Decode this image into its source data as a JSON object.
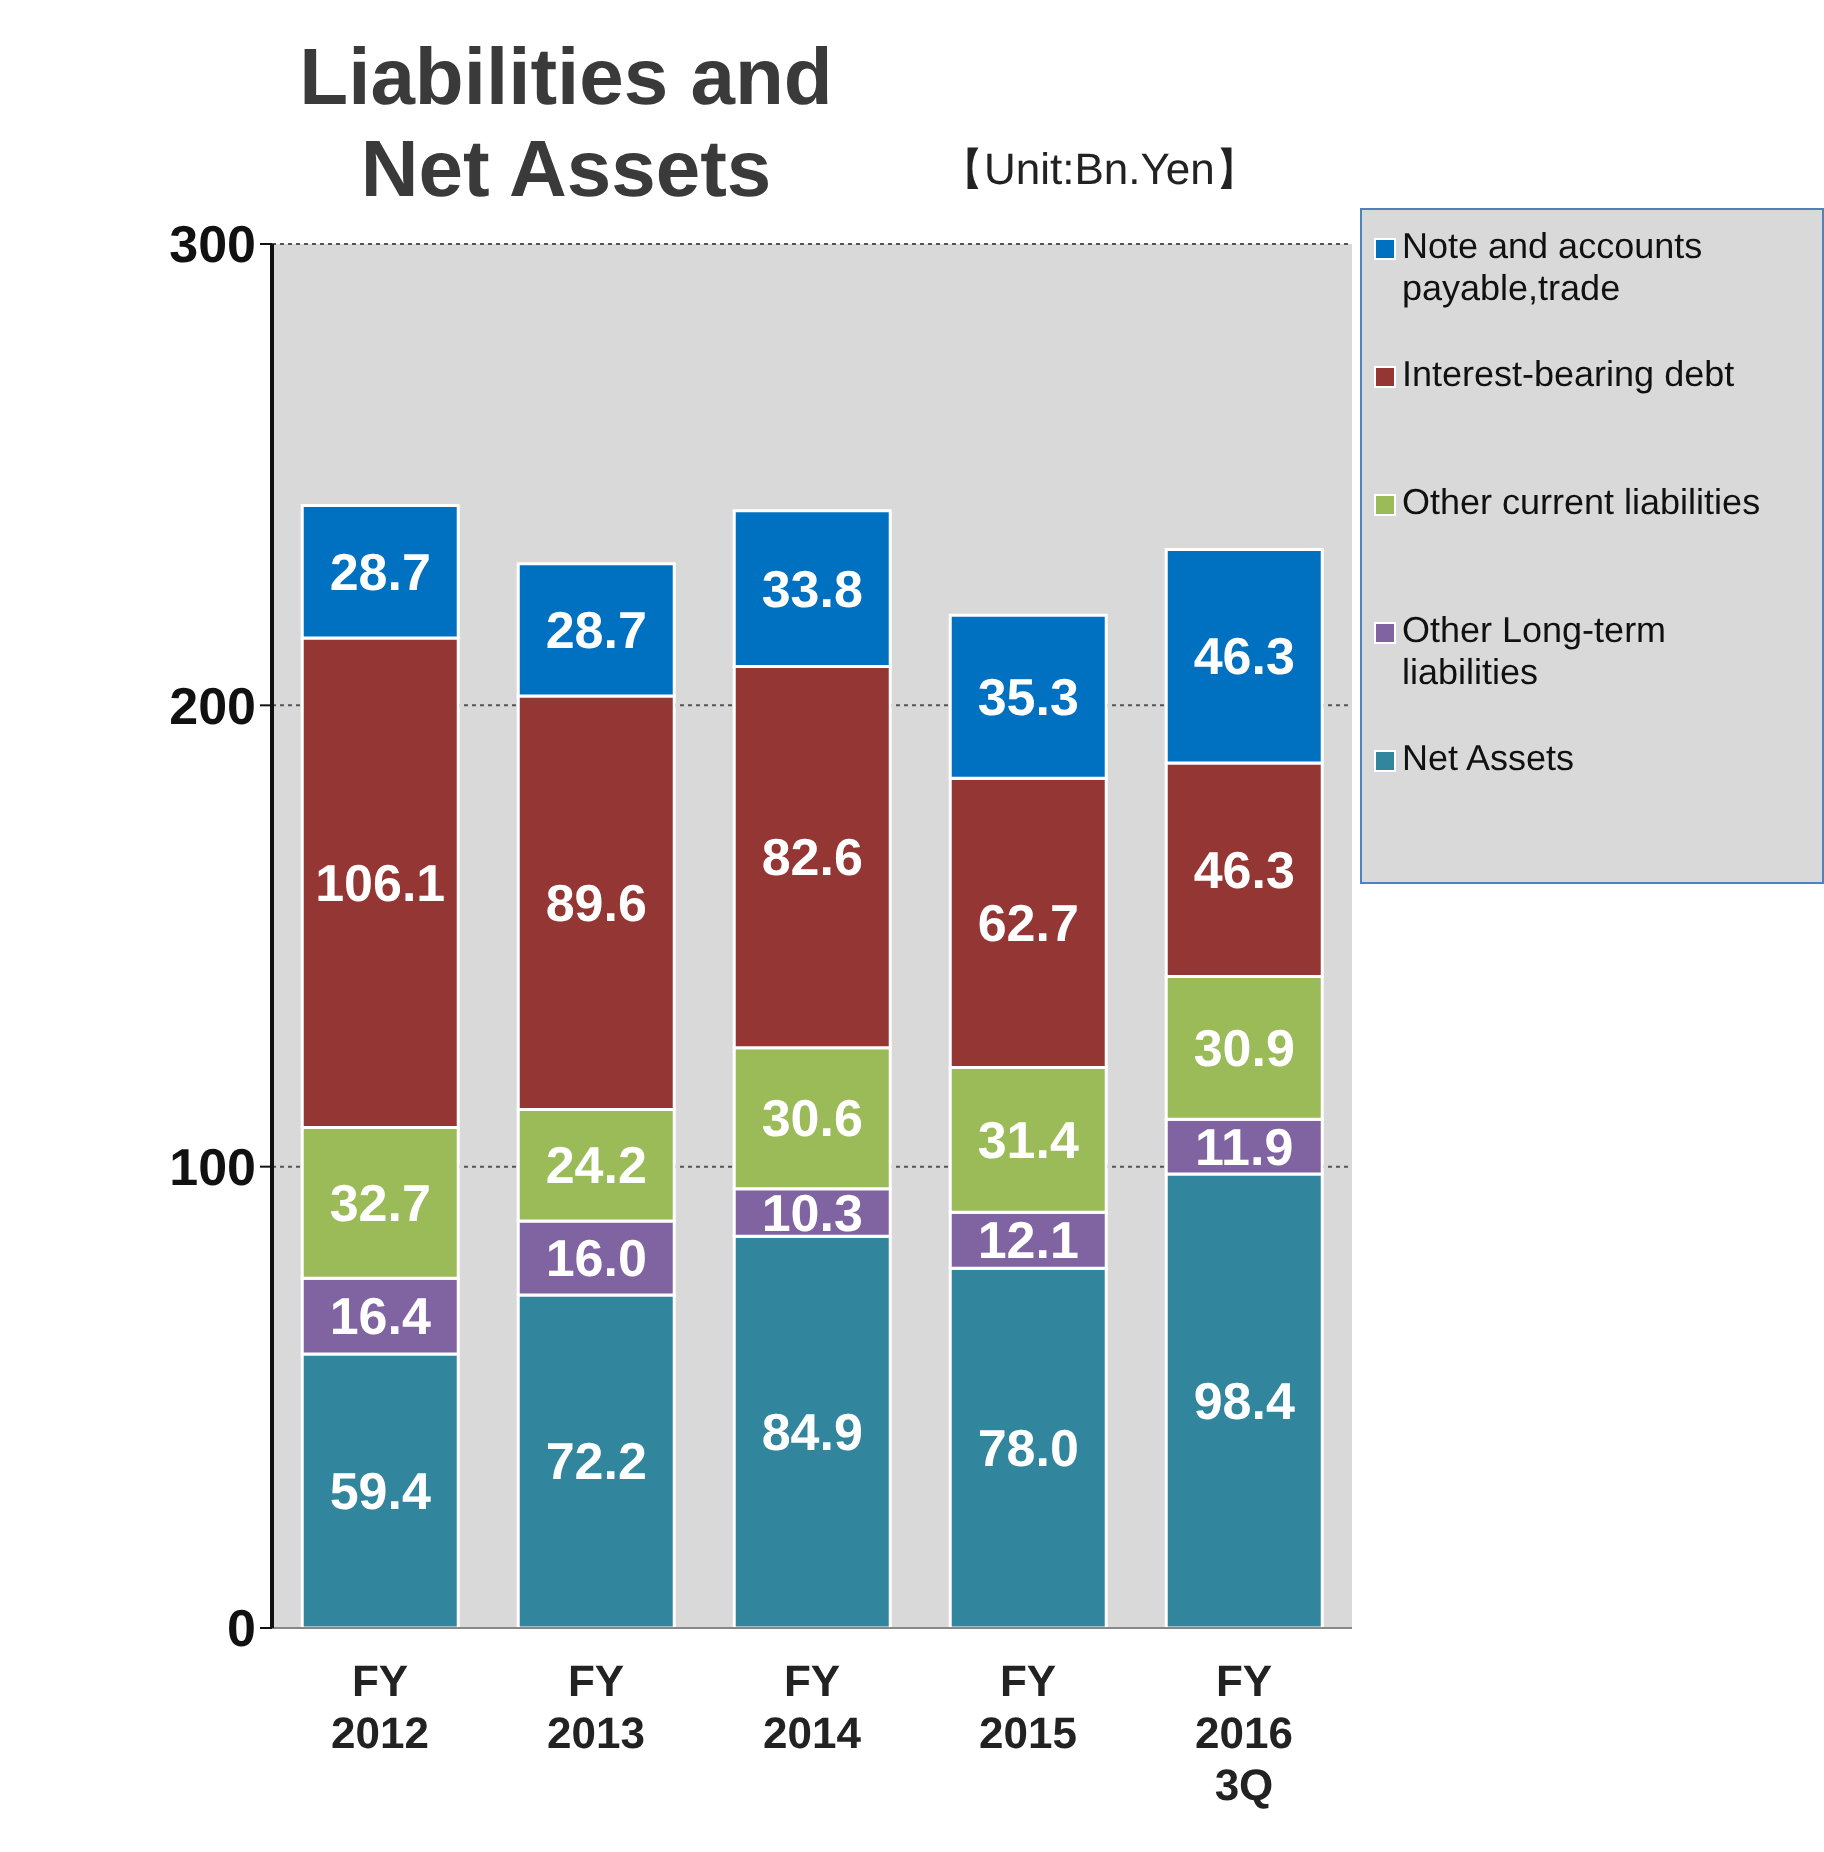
{
  "chart_data": {
    "type": "bar",
    "title": "Liabilities and Net Assets",
    "annotations": [
      "【Unit:Bn.Yen】"
    ],
    "categories": [
      "FY\n2012",
      "FY\n2013",
      "FY\n2014",
      "FY\n2015",
      "FY\n2016\n3Q"
    ],
    "stacked": true,
    "series": [
      {
        "name": "Net Assets",
        "color": "#31859c",
        "values": [
          59.4,
          72.2,
          84.9,
          78.0,
          98.4
        ],
        "value_labels": [
          "59.4",
          "72.2",
          "84.9",
          "78.0",
          "98.4"
        ]
      },
      {
        "name": "Other Long-term liabilities",
        "color": "#8064a2",
        "values": [
          16.4,
          16.0,
          10.3,
          12.1,
          11.9
        ],
        "value_labels": [
          "16.4",
          "16.0",
          "10.3",
          "12.1",
          "11.9"
        ]
      },
      {
        "name": "Other current liabilities",
        "color": "#9bbb59",
        "values": [
          32.7,
          24.2,
          30.6,
          31.4,
          30.9
        ],
        "value_labels": [
          "32.7",
          "24.2",
          "30.6",
          "31.4",
          "30.9"
        ]
      },
      {
        "name": "Interest-bearing debt",
        "color": "#943634",
        "values": [
          106.1,
          89.6,
          82.6,
          62.7,
          46.3
        ],
        "value_labels": [
          "106.1",
          "89.6",
          "82.6",
          "62.7",
          "46.3"
        ]
      },
      {
        "name": "Note and accounts payable,trade",
        "color": "#0070c0",
        "values": [
          28.7,
          28.7,
          33.8,
          35.3,
          46.3
        ],
        "value_labels": [
          "28.7",
          "28.7",
          "33.8",
          "35.3",
          "46.3"
        ]
      }
    ],
    "ylim": [
      0,
      300
    ],
    "yticks": [
      0,
      100,
      200,
      300
    ],
    "grid": "y",
    "legend": "top right"
  }
}
